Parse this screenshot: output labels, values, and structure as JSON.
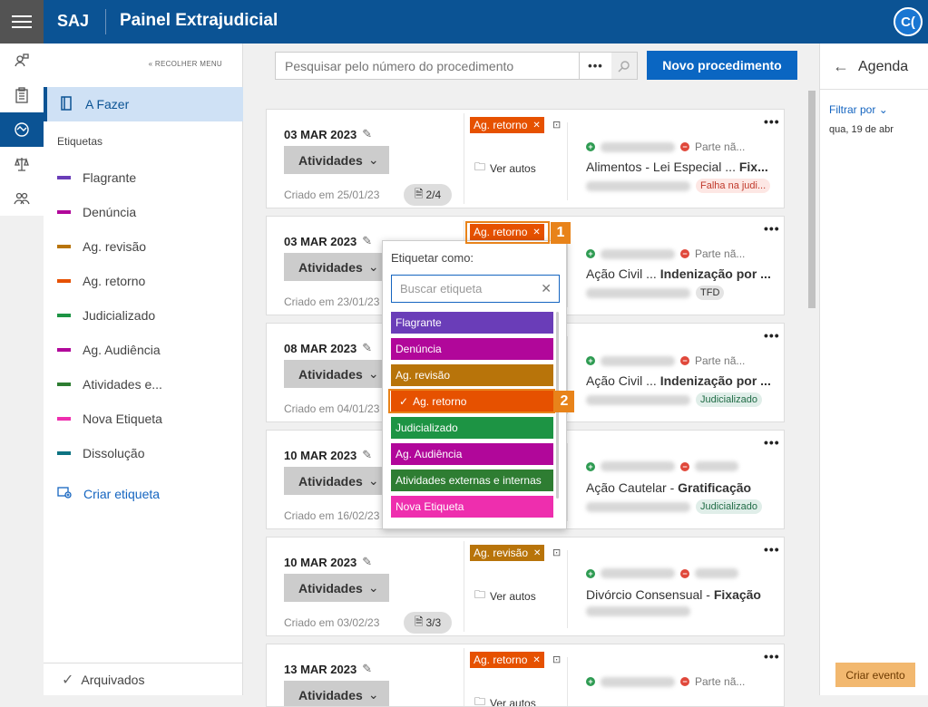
{
  "app": {
    "brand": "SAJ",
    "title": "Painel Extrajudicial",
    "avatar": "C("
  },
  "sidebar": {
    "collapse": "« RECOLHER MENU",
    "active": "A Fazer",
    "labels_header": "Etiquetas",
    "tags": [
      {
        "label": "Flagrante",
        "color": "#6a3db8"
      },
      {
        "label": "Denúncia",
        "color": "#b1079a"
      },
      {
        "label": "Ag. revisão",
        "color": "#b8740a"
      },
      {
        "label": "Ag. retorno",
        "color": "#e65100"
      },
      {
        "label": "Judicializado",
        "color": "#1d9444"
      },
      {
        "label": "Ag. Audiência",
        "color": "#b1079a"
      },
      {
        "label": "Atividades e...",
        "color": "#2e7d32"
      },
      {
        "label": "Nova Etiqueta",
        "color": "#ee2eae"
      },
      {
        "label": "Dissolução",
        "color": "#0d7382"
      }
    ],
    "create": "Criar etiqueta",
    "archived": "Arquivados"
  },
  "search": {
    "placeholder": "Pesquisar pelo número do procedimento",
    "more": "•••"
  },
  "new_button": "Novo procedimento",
  "agenda": {
    "title": "Agenda",
    "filter": "Filtrar por",
    "date": "qua, 19 de abr",
    "create": "Criar evento"
  },
  "cards": [
    {
      "date": "03 MAR 2023",
      "atv": "Atividades",
      "created": "Criado em 25/01/23",
      "docs": "2/4",
      "label": "Ag. retorno",
      "label_color": "#e65100",
      "ver": "Ver autos",
      "parts_b": "Parte nã...",
      "t1": "Alimentos - Lei Especial ...",
      "t2": "Fix...",
      "badge": "Falha na judi...",
      "badge_bg": "#fde7e4",
      "badge_fg": "#c0392b"
    },
    {
      "date": "03 MAR 2023",
      "atv": "Atividades",
      "created": "Criado em 23/01/23",
      "label": "Ag. retorno",
      "label_color": "#e65100",
      "parts_b": "Parte nã...",
      "t1": "Ação Civil ...",
      "t2": "Indenização por ...",
      "badge": "TFD",
      "badge_bg": "#e4e4e4",
      "badge_fg": "#333"
    },
    {
      "date": "08 MAR 2023",
      "atv": "Atividades",
      "created": "Criado em 04/01/23",
      "parts_b": "Parte nã...",
      "t1": "Ação Civil ...",
      "t2": "Indenização por ...",
      "badge": "Judicializado",
      "badge_bg": "#e0eee9",
      "badge_fg": "#1f6b45"
    },
    {
      "date": "10 MAR 2023",
      "atv": "Atividades",
      "created": "Criado em 16/02/23",
      "parts_b": "",
      "t1": "Ação Cautelar - ",
      "t2": "Gratificação",
      "badge": "Judicializado",
      "badge_bg": "#e0eee9",
      "badge_fg": "#1f6b45"
    },
    {
      "date": "10 MAR 2023",
      "atv": "Atividades",
      "created": "Criado em 03/02/23",
      "docs": "3/3",
      "label": "Ag. revisão",
      "label_color": "#b8740a",
      "ver": "Ver autos",
      "parts_b": "",
      "t1": "Divórcio Consensual - ",
      "t2": "Fixação"
    },
    {
      "date": "13 MAR 2023",
      "atv": "Atividades",
      "label": "Ag. retorno",
      "label_color": "#e65100",
      "ver": "Ver autos",
      "parts_b": "Parte nã..."
    }
  ],
  "popover": {
    "title": "Etiquetar como:",
    "placeholder": "Buscar etiqueta",
    "options": [
      {
        "label": "Flagrante",
        "color": "#6a3db8",
        "checked": false
      },
      {
        "label": "Denúncia",
        "color": "#b1079a",
        "checked": false
      },
      {
        "label": "Ag. revisão",
        "color": "#b8740a",
        "checked": false
      },
      {
        "label": "Ag. retorno",
        "color": "#e65100",
        "checked": true
      },
      {
        "label": "Judicializado",
        "color": "#1d9444",
        "checked": false
      },
      {
        "label": "Ag. Audiência",
        "color": "#b1079a",
        "checked": false
      },
      {
        "label": "Atividades externas e internas",
        "color": "#2e7d32",
        "checked": false
      },
      {
        "label": "Nova Etiqueta",
        "color": "#ee2eae",
        "checked": false
      }
    ]
  },
  "callouts": [
    "1",
    "2"
  ],
  "icons": [
    "menu-icon",
    "user-search-icon",
    "clipboard-icon",
    "handshake-icon",
    "scale-icon",
    "people-icon",
    "book-icon",
    "edit-icon",
    "document-icon",
    "folder-icon",
    "add-label-icon",
    "search-icon",
    "arrow-left-icon",
    "chevron-down-icon",
    "check-icon",
    "close-icon"
  ]
}
